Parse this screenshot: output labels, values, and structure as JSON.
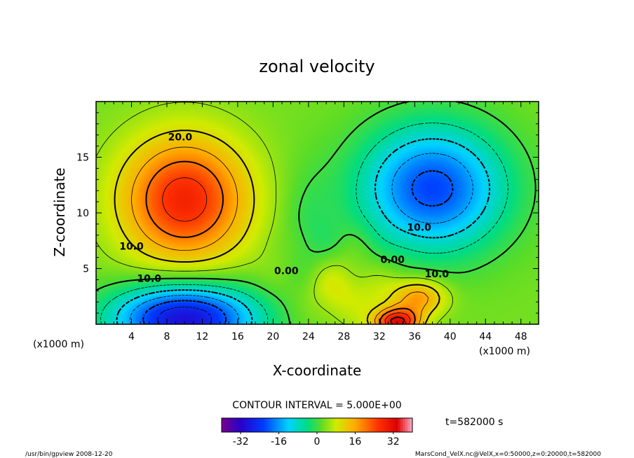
{
  "chart_data": {
    "type": "heatmap",
    "title": "zonal velocity",
    "xlabel": "X-coordinate",
    "ylabel": "Z-coordinate",
    "x_unit_label": "(x1000 m)",
    "y_unit_label": "(x1000 m)",
    "xlim": [
      0,
      50
    ],
    "ylim": [
      0,
      20
    ],
    "x_ticks": [
      4,
      8,
      12,
      16,
      20,
      24,
      28,
      32,
      36,
      40,
      44,
      48
    ],
    "y_ticks": [
      5,
      10,
      15
    ],
    "color_range": [
      -40,
      40
    ],
    "colorbar_ticks": [
      "-32",
      "-16",
      "0",
      "16",
      "32"
    ],
    "contour_interval_label": "CONTOUR INTERVAL = 5.000E+00",
    "time_label": "t=582000 s",
    "contour_labels": [
      {
        "text": "20.0",
        "x": 9.5,
        "y": 16.5
      },
      {
        "text": "10.0",
        "x": 4.0,
        "y": 6.7
      },
      {
        "text": "10.0",
        "x": 6.0,
        "y": 3.8
      },
      {
        "text": "0.00",
        "x": 21.5,
        "y": 4.5
      },
      {
        "text": "0.00",
        "x": 33.5,
        "y": 5.5
      },
      {
        "text": "10.0",
        "x": 36.5,
        "y": 8.4
      },
      {
        "text": "10.0",
        "x": 38.5,
        "y": 4.2
      }
    ],
    "features": [
      {
        "kind": "max",
        "x": 10,
        "y": 11.2,
        "value": 28
      },
      {
        "kind": "min",
        "x": 38,
        "y": 12.2,
        "value": -22
      },
      {
        "kind": "min",
        "x": 10,
        "y": 0.5,
        "value": -30
      },
      {
        "kind": "max",
        "x": 34,
        "y": 0.2,
        "value": 30
      },
      {
        "kind": "max",
        "x": 36.5,
        "y": 2.4,
        "value": 18
      }
    ]
  },
  "footer": {
    "left": "/usr/bin/gpview   2008-12-20",
    "right": "MarsCond_VelX.nc@VelX,x=0:50000,z=0:20000,t=582000"
  }
}
